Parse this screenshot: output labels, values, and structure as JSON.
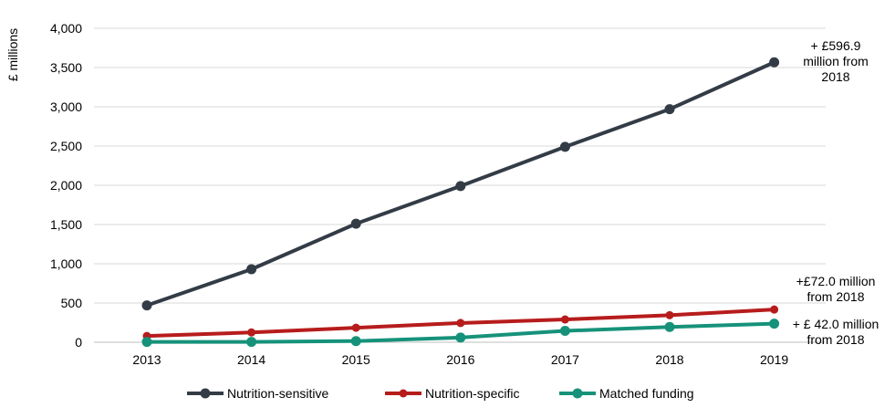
{
  "chart_data": {
    "type": "line",
    "ylabel": "£ millions",
    "xlabel": "",
    "x": [
      "2013",
      "2014",
      "2015",
      "2016",
      "2017",
      "2018",
      "2019"
    ],
    "ylim": [
      0,
      4000
    ],
    "yticks": [
      0,
      500,
      1000,
      1500,
      2000,
      2500,
      3000,
      3500,
      4000
    ],
    "ytick_labels": [
      "0",
      "500",
      "1,000",
      "1,500",
      "2,000",
      "2,500",
      "3,000",
      "3,500",
      "4,000"
    ],
    "grid": "horizontal",
    "legend_position": "bottom",
    "series": [
      {
        "name": "Nutrition-sensitive",
        "color": "#333c46",
        "values": [
          470,
          930,
          1510,
          1990,
          2490,
          2970,
          3567
        ]
      },
      {
        "name": "Nutrition-specific",
        "color": "#b71c1c",
        "values": [
          80,
          125,
          185,
          245,
          290,
          345,
          417
        ]
      },
      {
        "name": "Matched funding",
        "color": "#16927a",
        "values": [
          5,
          5,
          15,
          60,
          145,
          195,
          237
        ]
      }
    ],
    "annotations": [
      {
        "series": "Nutrition-sensitive",
        "lines": [
          "+ £596.9",
          "million  from",
          "2018"
        ]
      },
      {
        "series": "Nutrition-specific",
        "lines": [
          "+£72.0 million",
          "from 2018"
        ]
      },
      {
        "series": "Matched funding",
        "lines": [
          "+ £ 42.0 million",
          "from 2018"
        ]
      }
    ]
  }
}
